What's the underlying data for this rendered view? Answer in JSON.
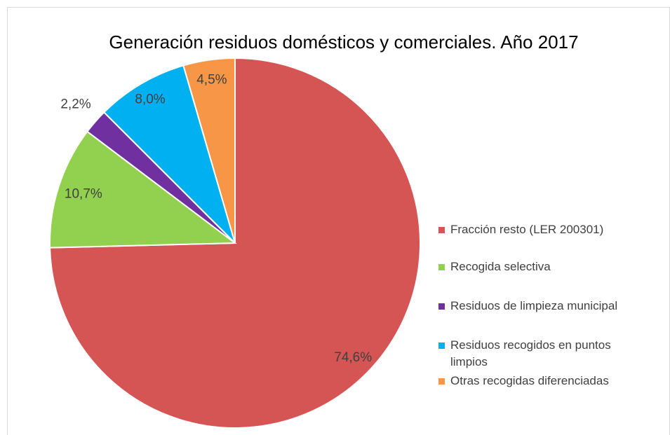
{
  "chart_data": {
    "type": "pie",
    "title": "Generación residuos domésticos y comerciales. Año 2017",
    "categories": [
      "Fracción resto (LER 200301)",
      "Recogida selectiva",
      "Residuos de limpieza municipal",
      "Residuos recogidos en puntos limpios",
      "Otras recogidas diferenciadas"
    ],
    "values": [
      74.6,
      10.7,
      2.2,
      8.0,
      4.5
    ],
    "value_labels": [
      "74,6%",
      "10,7%",
      "2,2%",
      "8,0%",
      "4,5%"
    ],
    "colors": [
      "#d55454",
      "#92d050",
      "#7030a0",
      "#00b0f0",
      "#f79646"
    ],
    "legend": "right"
  }
}
